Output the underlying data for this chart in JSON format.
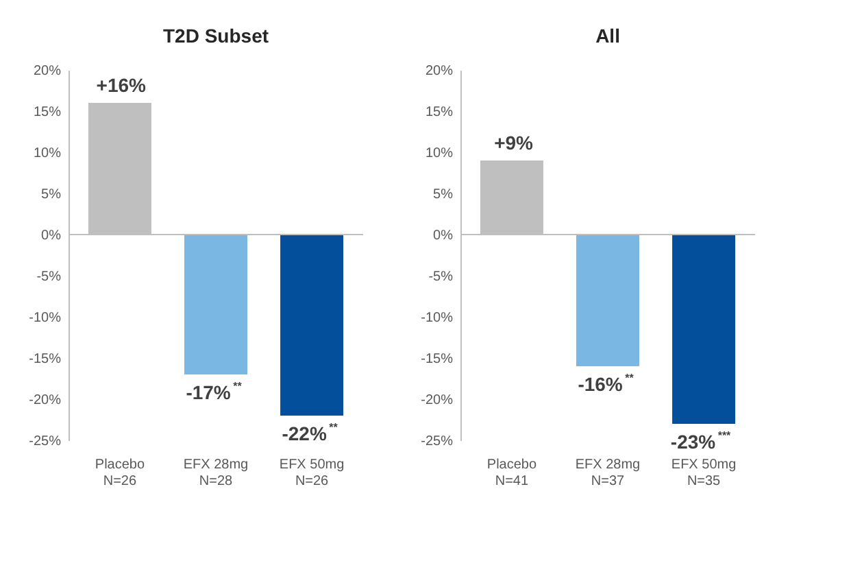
{
  "chart_data": [
    {
      "type": "bar",
      "title": "T2D Subset",
      "categories": [
        "Placebo\nN=26",
        "EFX 28mg\nN=28",
        "EFX 50mg\nN=26"
      ],
      "values": [
        16,
        -17,
        -22
      ],
      "colors": [
        "#bfbfbf",
        "#7ab8e3",
        "#044f9b"
      ],
      "value_labels": [
        "+16%",
        "-17%$^{**}$",
        "-22%$^{**}$"
      ],
      "ylim": [
        -25,
        20
      ],
      "yticks": [
        {
          "value": -25,
          "label": "-25%"
        },
        {
          "value": -20,
          "label": "-20%"
        },
        {
          "value": -15,
          "label": "-15%"
        },
        {
          "value": -10,
          "label": "-10%"
        },
        {
          "value": -5,
          "label": "-5%"
        },
        {
          "value": 0,
          "label": "0%"
        },
        {
          "value": 5,
          "label": "5%"
        },
        {
          "value": 10,
          "label": "10%"
        },
        {
          "value": 15,
          "label": "15%"
        },
        {
          "value": 20,
          "label": "20%"
        }
      ],
      "ref_lines": [
        {
          "axis": "y",
          "value": 0,
          "color": "#bfbfbf"
        }
      ],
      "grid": false
    },
    {
      "type": "bar",
      "title": "All",
      "categories": [
        "Placebo\nN=41",
        "EFX 28mg\nN=37",
        "EFX 50mg\nN=35"
      ],
      "values": [
        9,
        -16,
        -23
      ],
      "colors": [
        "#bfbfbf",
        "#7ab8e3",
        "#044f9b"
      ],
      "value_labels": [
        "+9%",
        "-16%$^{**}$",
        "-23%$^{***}$"
      ],
      "ylim": [
        -25,
        20
      ],
      "yticks": [
        {
          "value": -25,
          "label": "-25%"
        },
        {
          "value": -20,
          "label": "-20%"
        },
        {
          "value": -15,
          "label": "-15%"
        },
        {
          "value": -10,
          "label": "-10%"
        },
        {
          "value": -5,
          "label": "-5%"
        },
        {
          "value": 0,
          "label": "0%"
        },
        {
          "value": 5,
          "label": "5%"
        },
        {
          "value": 10,
          "label": "10%"
        },
        {
          "value": 15,
          "label": "15%"
        },
        {
          "value": 20,
          "label": "20%"
        }
      ],
      "ref_lines": [
        {
          "axis": "y",
          "value": 0,
          "color": "#bfbfbf"
        }
      ],
      "grid": false
    }
  ]
}
